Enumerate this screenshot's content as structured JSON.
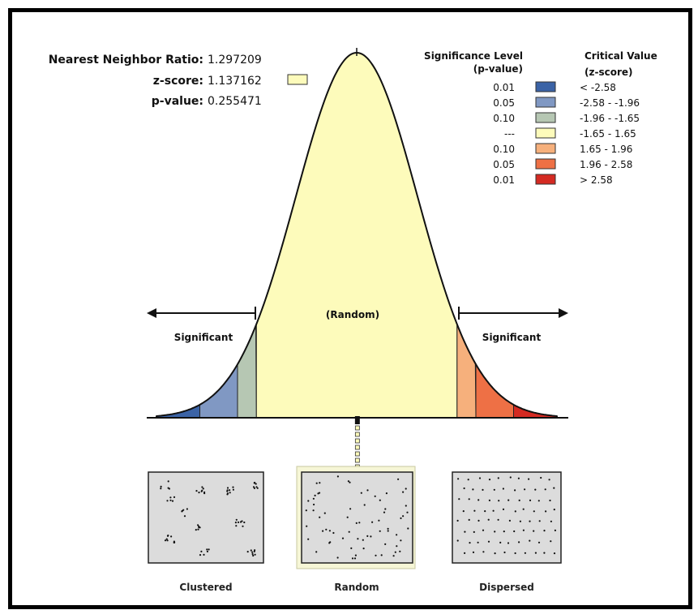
{
  "stats": {
    "nnr_label": "Nearest Neighbor Ratio:",
    "nnr_value": "1.297209",
    "z_label": "z-score:",
    "z_value": "1.137162",
    "p_label": "p-value:",
    "p_value": "0.255471"
  },
  "legend": {
    "sig_header_line1": "Significance Level",
    "sig_header_line2": "(p-value)",
    "crit_header_line1": "Critical Value",
    "crit_header_line2": "(z-score)",
    "rows": [
      {
        "p": "0.01",
        "z": "< -2.58",
        "color": "#3b63a6"
      },
      {
        "p": "0.05",
        "z": "-2.58 - -1.96",
        "color": "#8098c3"
      },
      {
        "p": "0.10",
        "z": "-1.96 - -1.65",
        "color": "#b6c7b3"
      },
      {
        "p": "---",
        "z": "-1.65 - 1.65",
        "color": "#fdfbbb"
      },
      {
        "p": "0.10",
        "z": "1.65 - 1.96",
        "color": "#f6b07c"
      },
      {
        "p": "0.05",
        "z": "1.96 - 2.58",
        "color": "#ee7045"
      },
      {
        "p": "0.01",
        "z": "> 2.58",
        "color": "#d42a22"
      }
    ]
  },
  "curve": {
    "random_label": "(Random)",
    "left_significant": "Significant",
    "right_significant": "Significant",
    "marker_color": "#fdfbbb"
  },
  "patterns": {
    "clustered": "Clustered",
    "random": "Random",
    "dispersed": "Dispersed"
  }
}
